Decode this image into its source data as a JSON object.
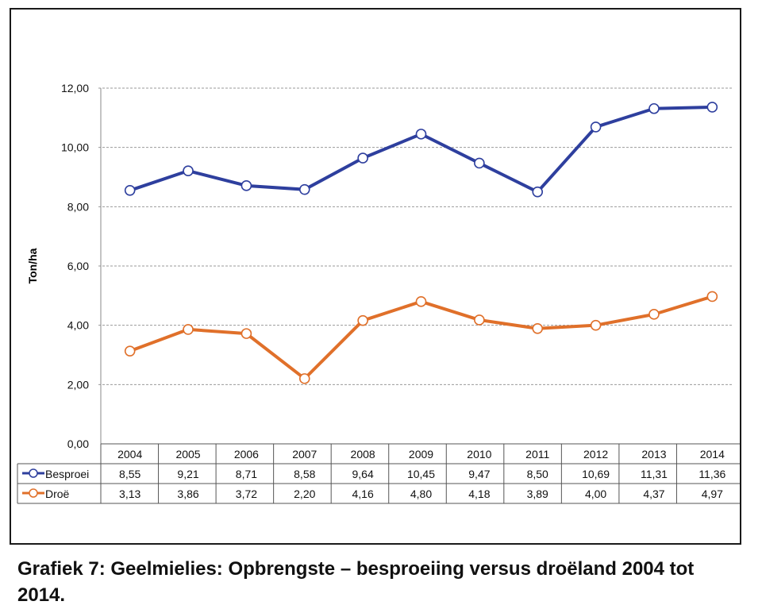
{
  "caption": "Grafiek 7: Geelmielies: Opbrengste – besproeiing versus droëland 2004 tot 2014.",
  "chart_data": {
    "type": "line",
    "title": "",
    "xlabel": "",
    "ylabel": "Ton/ha",
    "ylim": [
      0,
      12
    ],
    "yticks": [
      "0,00",
      "2,00",
      "4,00",
      "6,00",
      "8,00",
      "10,00",
      "12,00"
    ],
    "categories": [
      "2004",
      "2005",
      "2006",
      "2007",
      "2008",
      "2009",
      "2010",
      "2011",
      "2012",
      "2013",
      "2014"
    ],
    "grid": "horizontal dashed",
    "legend": "data table below chart",
    "series": [
      {
        "name": "Besproei",
        "color": "#2e3f9e",
        "values": [
          8.55,
          9.21,
          8.71,
          8.58,
          9.64,
          10.45,
          9.47,
          8.5,
          10.69,
          11.31,
          11.36
        ],
        "labels": [
          "8,55",
          "9,21",
          "8,71",
          "8,58",
          "9,64",
          "10,45",
          "9,47",
          "8,50",
          "10,69",
          "11,31",
          "11,36"
        ]
      },
      {
        "name": "Droë",
        "color": "#e0702a",
        "values": [
          3.13,
          3.86,
          3.72,
          2.2,
          4.16,
          4.8,
          4.18,
          3.89,
          4.0,
          4.37,
          4.97
        ],
        "labels": [
          "3,13",
          "3,86",
          "3,72",
          "2,20",
          "4,16",
          "4,80",
          "4,18",
          "3,89",
          "4,00",
          "4,37",
          "4,97"
        ]
      }
    ]
  }
}
